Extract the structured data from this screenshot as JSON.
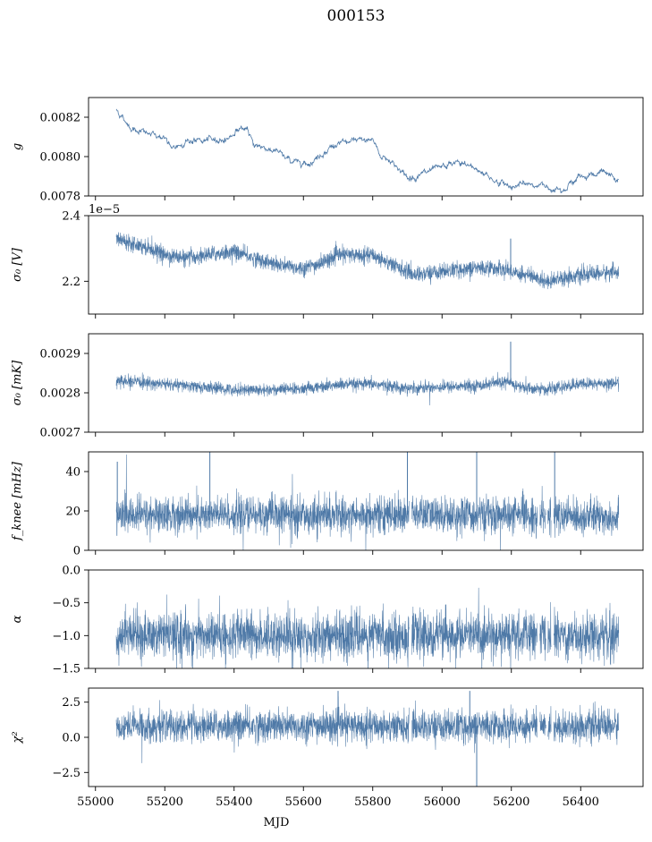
{
  "figure": {
    "title": "000153"
  },
  "colors": {
    "series": "#4e79a7",
    "axes": "#000000",
    "background": "#ffffff"
  },
  "chart_data": [
    {
      "type": "line",
      "ylabel": "g",
      "ylim": [
        0.0078,
        0.0083
      ],
      "yticks": [
        0.0078,
        0.008,
        0.0082
      ],
      "ytick_labels": [
        "0.0078",
        "0.0080",
        "0.0082"
      ],
      "xlim": [
        54980,
        56580
      ],
      "xticks": [
        55000,
        55200,
        55400,
        55600,
        55800,
        56000,
        56200,
        56400
      ],
      "show_xtick_labels": false,
      "style": "thin",
      "trend": [
        [
          55060,
          0.00824
        ],
        [
          55100,
          0.00815
        ],
        [
          55160,
          0.00811
        ],
        [
          55200,
          0.0081
        ],
        [
          55220,
          0.00803
        ],
        [
          55260,
          0.00808
        ],
        [
          55320,
          0.00808
        ],
        [
          55380,
          0.00809
        ],
        [
          55420,
          0.00815
        ],
        [
          55440,
          0.00812
        ],
        [
          55460,
          0.00806
        ],
        [
          55520,
          0.00803
        ],
        [
          55560,
          0.00798
        ],
        [
          55620,
          0.00797
        ],
        [
          55680,
          0.00805
        ],
        [
          55720,
          0.00807
        ],
        [
          55800,
          0.00809
        ],
        [
          55820,
          0.00801
        ],
        [
          55860,
          0.00797
        ],
        [
          55900,
          0.00789
        ],
        [
          55960,
          0.00792
        ],
        [
          56000,
          0.00794
        ],
        [
          56040,
          0.00797
        ],
        [
          56100,
          0.00794
        ],
        [
          56160,
          0.00787
        ],
        [
          56200,
          0.00785
        ],
        [
          56260,
          0.00786
        ],
        [
          56320,
          0.00784
        ],
        [
          56360,
          0.00785
        ],
        [
          56400,
          0.0079
        ],
        [
          56460,
          0.00792
        ],
        [
          56510,
          0.00788
        ]
      ],
      "noise": 8e-06,
      "spikes": []
    },
    {
      "type": "line",
      "ylabel": "σ₀ [V]",
      "ylim": [
        2.1,
        2.4
      ],
      "yticks": [
        2.2,
        2.4
      ],
      "ytick_labels": [
        "2.2",
        "2.4"
      ],
      "offset_text": "1e−5",
      "xlim": [
        54980,
        56580
      ],
      "xticks": [
        55000,
        55200,
        55400,
        55600,
        55800,
        56000,
        56200,
        56400
      ],
      "show_xtick_labels": false,
      "style": "band",
      "trend": [
        [
          55060,
          2.33
        ],
        [
          55100,
          2.32
        ],
        [
          55160,
          2.3
        ],
        [
          55200,
          2.28
        ],
        [
          55260,
          2.27
        ],
        [
          55320,
          2.28
        ],
        [
          55400,
          2.29
        ],
        [
          55460,
          2.27
        ],
        [
          55520,
          2.25
        ],
        [
          55600,
          2.24
        ],
        [
          55640,
          2.25
        ],
        [
          55700,
          2.28
        ],
        [
          55800,
          2.28
        ],
        [
          55860,
          2.25
        ],
        [
          55920,
          2.22
        ],
        [
          56000,
          2.23
        ],
        [
          56080,
          2.24
        ],
        [
          56160,
          2.24
        ],
        [
          56240,
          2.22
        ],
        [
          56300,
          2.2
        ],
        [
          56340,
          2.21
        ],
        [
          56420,
          2.22
        ],
        [
          56510,
          2.23
        ]
      ],
      "noise": 0.012,
      "spikes": [
        [
          56198,
          2.33
        ]
      ]
    },
    {
      "type": "line",
      "ylabel": "σ₀ [mK]",
      "ylim": [
        0.0027,
        0.00295
      ],
      "yticks": [
        0.0027,
        0.0028,
        0.0029
      ],
      "ytick_labels": [
        "0.0027",
        "0.0028",
        "0.0029"
      ],
      "xlim": [
        54980,
        56580
      ],
      "xticks": [
        55000,
        55200,
        55400,
        55600,
        55800,
        56000,
        56200,
        56400
      ],
      "show_xtick_labels": false,
      "style": "band",
      "trend": [
        [
          55060,
          0.00283
        ],
        [
          55200,
          0.002822
        ],
        [
          55300,
          0.002815
        ],
        [
          55400,
          0.002808
        ],
        [
          55500,
          0.002808
        ],
        [
          55600,
          0.00281
        ],
        [
          55700,
          0.00282
        ],
        [
          55800,
          0.002822
        ],
        [
          55900,
          0.002812
        ],
        [
          56000,
          0.002815
        ],
        [
          56100,
          0.002818
        ],
        [
          56180,
          0.002828
        ],
        [
          56240,
          0.002812
        ],
        [
          56300,
          0.002808
        ],
        [
          56400,
          0.002822
        ],
        [
          56510,
          0.002825
        ]
      ],
      "noise": 7.5e-06,
      "spikes": [
        [
          56198,
          0.00293
        ]
      ]
    },
    {
      "type": "line",
      "ylabel": "f_knee [mHz]",
      "ylim": [
        0,
        50
      ],
      "yticks": [
        0,
        20,
        40
      ],
      "ytick_labels": [
        "0",
        "20",
        "40"
      ],
      "xlim": [
        54980,
        56580
      ],
      "xticks": [
        55000,
        55200,
        55400,
        55600,
        55800,
        56000,
        56200,
        56400
      ],
      "show_xtick_labels": false,
      "style": "band",
      "trend": [
        [
          55060,
          18
        ],
        [
          55500,
          18
        ],
        [
          56000,
          18
        ],
        [
          56510,
          17
        ]
      ],
      "noise": 4.5,
      "gaps": [
        [
          55905,
          55912
        ],
        [
          56275,
          56282
        ],
        [
          56300,
          56305
        ],
        [
          56315,
          56322
        ]
      ],
      "spikes": [
        [
          55063,
          45
        ],
        [
          55330,
          50
        ],
        [
          55900,
          50
        ],
        [
          56100,
          50
        ],
        [
          56325,
          50
        ]
      ]
    },
    {
      "type": "line",
      "ylabel": "α",
      "ylim": [
        -1.5,
        0.0
      ],
      "yticks": [
        -1.5,
        -1.0,
        -0.5,
        0.0
      ],
      "ytick_labels": [
        "−1.5",
        "−1.0",
        "−0.5",
        "0.0"
      ],
      "xlim": [
        54980,
        56580
      ],
      "xticks": [
        55000,
        55200,
        55400,
        55600,
        55800,
        56000,
        56200,
        56400
      ],
      "show_xtick_labels": false,
      "style": "band",
      "trend": [
        [
          55060,
          -1.0
        ],
        [
          56510,
          -1.0
        ]
      ],
      "noise": 0.17,
      "gaps": [
        [
          55905,
          55912
        ],
        [
          56275,
          56282
        ],
        [
          56300,
          56305
        ],
        [
          56315,
          56322
        ]
      ],
      "spikes": []
    },
    {
      "type": "line",
      "ylabel": "χ²",
      "xlabel": "MJD",
      "ylim": [
        -3.5,
        3.5
      ],
      "yticks": [
        -2.5,
        0.0,
        2.5
      ],
      "ytick_labels": [
        "−2.5",
        "0.0",
        "2.5"
      ],
      "xlim": [
        54980,
        56580
      ],
      "xticks": [
        55000,
        55200,
        55400,
        55600,
        55800,
        56000,
        56200,
        56400
      ],
      "xtick_labels": [
        "55000",
        "55200",
        "55400",
        "55600",
        "55800",
        "56000",
        "56200",
        "56400"
      ],
      "show_xtick_labels": true,
      "style": "band",
      "trend": [
        [
          55060,
          0.8
        ],
        [
          56510,
          0.8
        ]
      ],
      "noise": 0.55,
      "gaps": [
        [
          55905,
          55912
        ],
        [
          56275,
          56282
        ],
        [
          56300,
          56305
        ],
        [
          56315,
          56322
        ]
      ],
      "spikes": [
        [
          56100,
          -3.5
        ],
        [
          56080,
          3.3
        ],
        [
          55700,
          3.3
        ]
      ]
    }
  ]
}
